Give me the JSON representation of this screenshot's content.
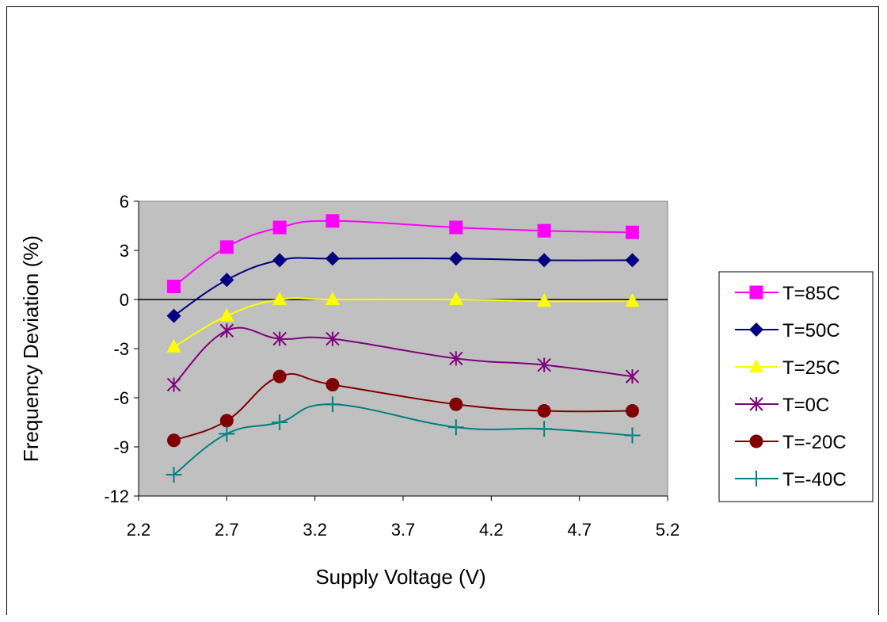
{
  "chart_data": {
    "type": "line",
    "xlabel": "Supply Voltage (V)",
    "ylabel": "Frequency Deviation (%)",
    "xlim": [
      2.2,
      5.2
    ],
    "ylim": [
      -12,
      6
    ],
    "xticks": [
      "2.2",
      "2.7",
      "3.2",
      "3.7",
      "4.2",
      "4.7",
      "5.2"
    ],
    "yticks": [
      "6",
      "3",
      "0",
      "-3",
      "-6",
      "-9",
      "-12"
    ],
    "grid": false,
    "plot_background": "#c0c0c0",
    "zero_line": true,
    "legend_position": "right",
    "series": [
      {
        "name": "T=85C",
        "marker": "square",
        "color": "#ff00ff",
        "x": [
          2.4,
          2.7,
          3.0,
          3.3,
          4.0,
          4.5,
          5.0
        ],
        "y": [
          0.8,
          3.2,
          4.4,
          4.8,
          4.4,
          4.2,
          4.1
        ]
      },
      {
        "name": "T=50C",
        "marker": "diamond",
        "color": "#000080",
        "x": [
          2.4,
          2.7,
          3.0,
          3.3,
          4.0,
          4.5,
          5.0
        ],
        "y": [
          -1.0,
          1.2,
          2.4,
          2.5,
          2.5,
          2.4,
          2.4
        ]
      },
      {
        "name": "T=25C",
        "marker": "triangle",
        "color": "#ffff00",
        "x": [
          2.4,
          2.7,
          3.0,
          3.3,
          4.0,
          4.5,
          5.0
        ],
        "y": [
          -2.9,
          -1.0,
          0.0,
          0.0,
          0.0,
          -0.1,
          -0.1
        ]
      },
      {
        "name": "T=0C",
        "marker": "asterisk",
        "color": "#800080",
        "x": [
          2.4,
          2.7,
          3.0,
          3.3,
          4.0,
          4.5,
          5.0
        ],
        "y": [
          -5.2,
          -1.9,
          -2.4,
          -2.4,
          -3.6,
          -4.0,
          -4.7
        ]
      },
      {
        "name": "T=-20C",
        "marker": "circle",
        "color": "#800000",
        "x": [
          2.4,
          2.7,
          3.0,
          3.3,
          4.0,
          4.5,
          5.0
        ],
        "y": [
          -8.6,
          -7.4,
          -4.7,
          -5.2,
          -6.4,
          -6.8,
          -6.8
        ]
      },
      {
        "name": "T=-40C",
        "marker": "plus",
        "color": "#008080",
        "x": [
          2.4,
          2.7,
          3.0,
          3.3,
          4.0,
          4.5,
          5.0
        ],
        "y": [
          -10.7,
          -8.2,
          -7.5,
          -6.4,
          -7.8,
          -7.9,
          -8.3
        ]
      }
    ]
  }
}
